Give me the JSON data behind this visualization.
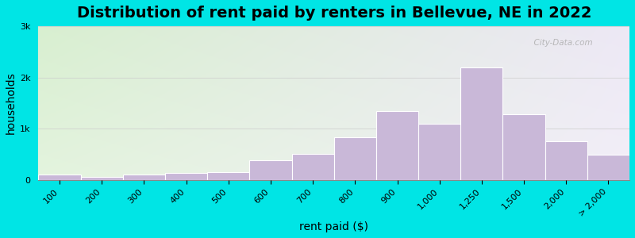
{
  "title": "Distribution of rent paid by renters in Bellevue, NE in 2022",
  "xlabel": "rent paid ($)",
  "ylabel": "households",
  "bar_color": "#c9b8d8",
  "bar_edge_color": "#ffffff",
  "background_outer": "#00e5e5",
  "ylim": [
    0,
    3000
  ],
  "yticks": [
    0,
    1000,
    2000,
    3000
  ],
  "ytick_labels": [
    "0",
    "1k",
    "2k",
    "3k"
  ],
  "categories": [
    "100",
    "200",
    "300",
    "400",
    "500",
    "600",
    "700",
    "800",
    "900",
    "1,000",
    "1,250",
    "1,500",
    "2,000",
    "> 2,000"
  ],
  "values": [
    100,
    55,
    105,
    135,
    155,
    390,
    510,
    830,
    1350,
    1100,
    2200,
    1280,
    750,
    490
  ],
  "bin_edges": [
    0,
    1,
    2,
    3,
    4,
    5,
    6,
    7,
    8,
    9,
    10,
    11,
    12,
    13,
    14
  ],
  "title_fontsize": 14,
  "axis_label_fontsize": 10,
  "tick_fontsize": 8,
  "watermark_text": "© City-Data.com",
  "bg_left_color": "#d8efd0",
  "bg_right_color": "#ede8f5"
}
